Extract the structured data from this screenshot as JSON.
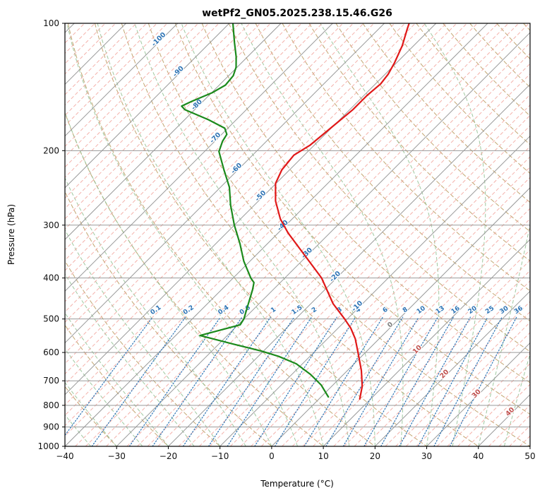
{
  "chart_data": {
    "type": "line",
    "subtype": "skew-t-log-p-sounding",
    "title": "wetPf2_GN05.2025.238.15.46.G26",
    "xlabel": "Temperature (°C)",
    "ylabel": "Pressure (hPa)",
    "x_ticks": [
      "−40",
      "−30",
      "−20",
      "−10",
      "0",
      "10",
      "20",
      "30",
      "40",
      "50"
    ],
    "x_tick_values": [
      -40,
      -30,
      -20,
      -10,
      0,
      10,
      20,
      30,
      40,
      50
    ],
    "p_ticks": [
      100,
      200,
      300,
      400,
      500,
      600,
      700,
      800,
      900,
      1000
    ],
    "t_range": [
      -40,
      50
    ],
    "p_range": [
      1000,
      100
    ],
    "skew_deg": 45,
    "grid_on": true,
    "legend": "none",
    "background": {
      "isobars": {
        "color": "#9a9a9a"
      },
      "isotherm_major": {
        "step": 10,
        "color": "#9a9a9a",
        "label_colors": {
          "negative": "#2e74b5",
          "zero": "#7f7f7f",
          "positive": "#c0504d"
        }
      },
      "isotherm_minor": {
        "step": 2,
        "color": "#f2a49c"
      },
      "dry_adiabats": {
        "step": 10,
        "color": "#b9975b"
      },
      "moist_adiabats": {
        "step": 5,
        "color": "#96c296"
      },
      "mixing_ratio": {
        "values": [
          0.1,
          0.2,
          0.4,
          0.6,
          1,
          1.5,
          2,
          3,
          4,
          6,
          8,
          10,
          13,
          16,
          20,
          25,
          30,
          36
        ],
        "color": "#2e74b5",
        "label_pressure": 480,
        "top_pressure": 495
      }
    },
    "isotherm_label_anchors": [
      [
        -100,
        110
      ],
      [
        -90,
        131
      ],
      [
        -80,
        157
      ],
      [
        -70,
        188
      ],
      [
        -60,
        222
      ],
      [
        -50,
        258
      ],
      [
        -40,
        303
      ],
      [
        -30,
        352
      ],
      [
        -20,
        400
      ],
      [
        -10,
        470
      ],
      [
        0,
        520
      ],
      [
        10,
        595
      ],
      [
        20,
        680
      ],
      [
        30,
        757
      ],
      [
        40,
        835
      ]
    ],
    "series": [
      {
        "name": "temperature",
        "color": "#e01818",
        "width": 2.2,
        "points_pT": [
          [
            773,
            7.9
          ],
          [
            721,
            5.9
          ],
          [
            662,
            2.7
          ],
          [
            602,
            -1.3
          ],
          [
            557,
            -4.6
          ],
          [
            526,
            -7.5
          ],
          [
            500,
            -10.5
          ],
          [
            460,
            -15.7
          ],
          [
            400,
            -22.9
          ],
          [
            351,
            -31.0
          ],
          [
            313,
            -38.1
          ],
          [
            290,
            -42.3
          ],
          [
            263,
            -46.7
          ],
          [
            239,
            -50.1
          ],
          [
            222,
            -51.5
          ],
          [
            205,
            -52.0
          ],
          [
            194,
            -50.8
          ],
          [
            176,
            -50.1
          ],
          [
            160,
            -49.4
          ],
          [
            148,
            -49.4
          ],
          [
            139,
            -49.0
          ],
          [
            132,
            -49.4
          ],
          [
            124,
            -50.4
          ],
          [
            113,
            -52.2
          ],
          [
            103,
            -54.5
          ],
          [
            100,
            -55.2
          ]
        ]
      },
      {
        "name": "dewpoint",
        "color": "#1c8a1c",
        "width": 2.2,
        "points_pT": [
          [
            764,
            1.4
          ],
          [
            716,
            -2.3
          ],
          [
            676,
            -6.4
          ],
          [
            638,
            -11.2
          ],
          [
            613,
            -16.0
          ],
          [
            595,
            -20.5
          ],
          [
            573,
            -27.3
          ],
          [
            547,
            -35.3
          ],
          [
            516,
            -29.6
          ],
          [
            500,
            -30.0
          ],
          [
            460,
            -32.1
          ],
          [
            426,
            -34.0
          ],
          [
            410,
            -35.1
          ],
          [
            400,
            -36.6
          ],
          [
            365,
            -41.2
          ],
          [
            332,
            -45.3
          ],
          [
            300,
            -50.0
          ],
          [
            269,
            -54.6
          ],
          [
            244,
            -58.3
          ],
          [
            222,
            -62.7
          ],
          [
            201,
            -67.2
          ],
          [
            190,
            -68.5
          ],
          [
            183,
            -69.0
          ],
          [
            177,
            -70.6
          ],
          [
            169,
            -75.4
          ],
          [
            160,
            -81.9
          ],
          [
            157,
            -83.2
          ],
          [
            153,
            -82.2
          ],
          [
            146,
            -79.9
          ],
          [
            140,
            -78.8
          ],
          [
            133,
            -79.1
          ],
          [
            127,
            -80.2
          ],
          [
            120,
            -82.2
          ],
          [
            111,
            -85.3
          ],
          [
            100,
            -89.3
          ]
        ]
      }
    ]
  }
}
